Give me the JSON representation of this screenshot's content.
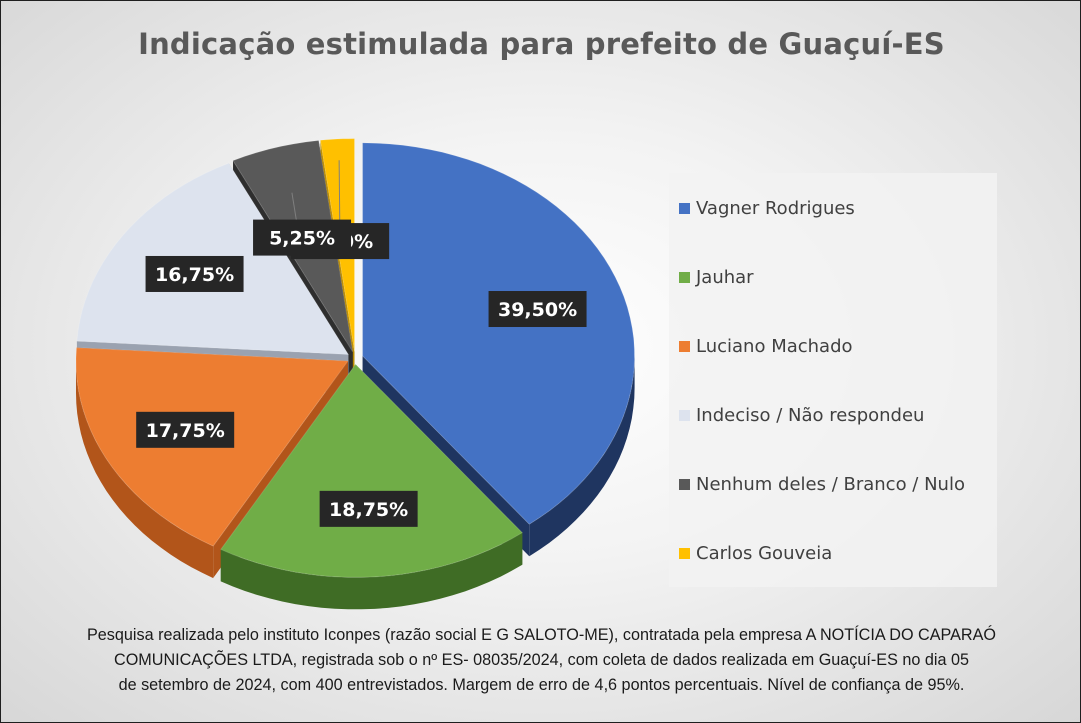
{
  "chart_data": {
    "type": "pie",
    "title": "Indicação estimulada para prefeito de Guaçuí-ES",
    "categories": [
      "Vagner Rodrigues",
      "Jauhar",
      "Luciano Machado",
      "Indeciso / Não respondeu",
      "Nenhum deles / Branco / Nulo",
      "Carlos Gouveia"
    ],
    "values": [
      39.5,
      18.75,
      17.75,
      16.75,
      5.25,
      2.0
    ],
    "value_labels": [
      "39,50%",
      "18,75%",
      "17,75%",
      "16,75%",
      "5,25%",
      "2,00%"
    ],
    "colors": [
      "#4472C4",
      "#70AD47",
      "#ED7D31",
      "#DDE3EE",
      "#595959",
      "#FFC000"
    ],
    "side_colors": [
      "#1F3560",
      "#3F6C25",
      "#B2551A",
      "#9AA2B0",
      "#2E2E2E",
      "#B88A00"
    ],
    "legend_position": "right",
    "exploded": true,
    "style": "3d"
  },
  "footnote": {
    "line1": "Pesquisa realizada pelo instituto Iconpes (razão social E G SALOTO-ME), contratada pela empresa A NOTÍCIA DO CAPARAÓ",
    "line2": "COMUNICAÇÕES LTDA, registrada sob o nº ES- 08035/2024, com coleta de dados realizada em Guaçuí-ES no dia 05",
    "line3": "de setembro de 2024, com 400 entrevistados. Margem de erro de 4,6 pontos percentuais. Nível de confiança de 95%."
  }
}
